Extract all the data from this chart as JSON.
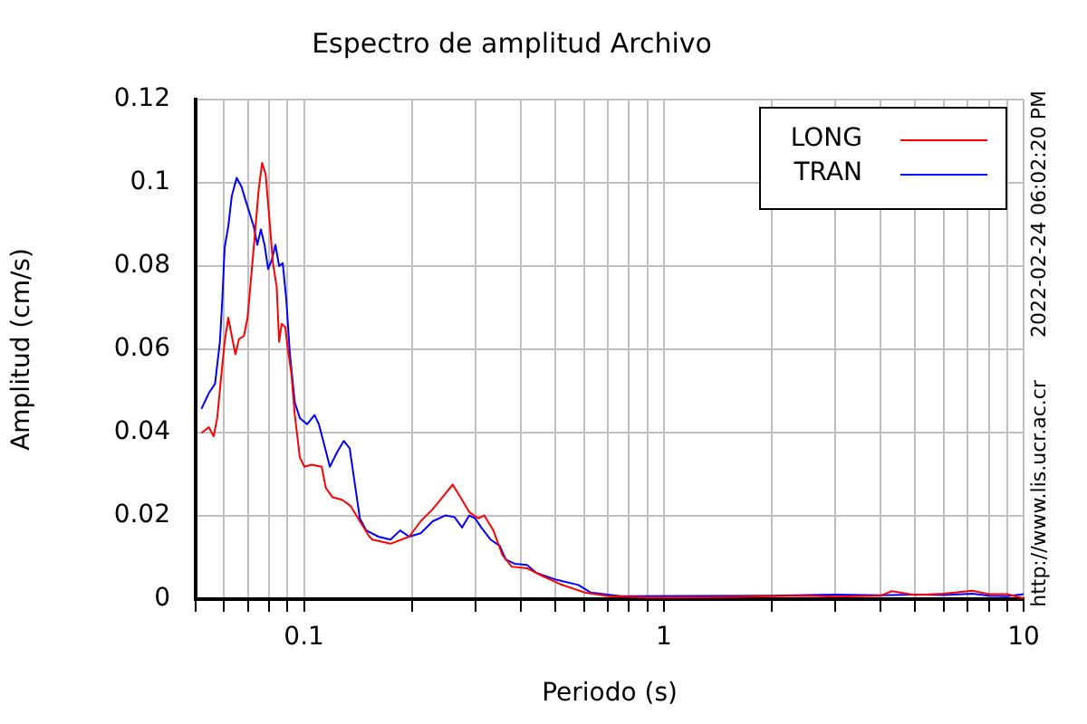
{
  "chart_data": {
    "type": "line",
    "title": "Espectro de amplitud Archivo",
    "xlabel": "Periodo (s)",
    "ylabel": "Amplitud (cm/s)",
    "log": "x",
    "grid": true,
    "legend": "top right",
    "marker": "none",
    "line_style": "solid",
    "xlim": [
      0.05,
      10
    ],
    "xticks": [
      {
        "value": 0.05,
        "label": null
      },
      {
        "value": 0.06,
        "label": null
      },
      {
        "value": 0.07,
        "label": null
      },
      {
        "value": 0.08,
        "label": null
      },
      {
        "value": 0.09,
        "label": null
      },
      0.1,
      {
        "value": 0.2,
        "label": null
      },
      {
        "value": 0.3,
        "label": null
      },
      {
        "value": 0.4,
        "label": null
      },
      {
        "value": 0.5,
        "label": null
      },
      {
        "value": 0.6,
        "label": null
      },
      {
        "value": 0.7,
        "label": null
      },
      {
        "value": 0.8,
        "label": null
      },
      {
        "value": 0.9,
        "label": null
      },
      1,
      {
        "value": 2,
        "label": null
      },
      {
        "value": 3,
        "label": null
      },
      {
        "value": 4,
        "label": null
      },
      {
        "value": 5,
        "label": null
      },
      {
        "value": 6,
        "label": null
      },
      {
        "value": 7,
        "label": null
      },
      {
        "value": 8,
        "label": null
      },
      {
        "value": 9,
        "label": null
      },
      10
    ],
    "ylim": [
      0,
      0.12
    ],
    "yticks": [
      0,
      0.02,
      0.04,
      0.06,
      0.08,
      0.1,
      0.12
    ],
    "annotations": [
      "2022-02-24 06:02:20 PM",
      "http://www.lis.ucr.ac.cr"
    ],
    "series": [
      {
        "name": "LONG",
        "color": "#ff0000",
        "x": [
          0.0519,
          0.0544,
          0.0561,
          0.0574,
          0.0588,
          0.0602,
          0.0616,
          0.063,
          0.0645,
          0.066,
          0.0681,
          0.0697,
          0.0714,
          0.0731,
          0.0748,
          0.0765,
          0.0783,
          0.0802,
          0.082,
          0.084,
          0.0853,
          0.0867,
          0.0887,
          0.0901,
          0.0922,
          0.0943,
          0.0974,
          0.1003,
          0.105,
          0.112,
          0.115,
          0.12,
          0.128,
          0.135,
          0.143,
          0.152,
          0.155,
          0.174,
          0.196,
          0.211,
          0.228,
          0.247,
          0.259,
          0.272,
          0.288,
          0.305,
          0.317,
          0.336,
          0.356,
          0.378,
          0.417,
          0.459,
          0.515,
          0.602,
          0.703,
          0.922,
          1.5,
          2,
          2.5,
          3,
          4,
          4.3,
          5,
          6,
          7.2,
          8,
          9,
          10
        ],
        "values": [
          0.0399,
          0.0413,
          0.0391,
          0.0435,
          0.053,
          0.0618,
          0.0676,
          0.0632,
          0.0588,
          0.0625,
          0.0632,
          0.0676,
          0.0778,
          0.088,
          0.0982,
          0.1048,
          0.1019,
          0.091,
          0.0807,
          0.0749,
          0.0618,
          0.0661,
          0.0654,
          0.0603,
          0.0544,
          0.0442,
          0.034,
          0.0318,
          0.0323,
          0.0318,
          0.0267,
          0.0245,
          0.0238,
          0.0223,
          0.0187,
          0.015,
          0.0143,
          0.0133,
          0.015,
          0.0187,
          0.0216,
          0.0253,
          0.0275,
          0.0245,
          0.0209,
          0.0194,
          0.0201,
          0.0165,
          0.0106,
          0.0078,
          0.0074,
          0.0056,
          0.0036,
          0.0016,
          0.0007,
          0.0004,
          0.0005,
          0.0007,
          0.0008,
          0.0006,
          0.0008,
          0.0019,
          0.001,
          0.0013,
          0.002,
          0.0012,
          0.0012,
          0.0002
        ]
      },
      {
        "name": "TRAN",
        "color": "#0000ff",
        "x": [
          0.0519,
          0.0544,
          0.0566,
          0.0584,
          0.0593,
          0.0602,
          0.0616,
          0.063,
          0.065,
          0.0671,
          0.0687,
          0.0708,
          0.0725,
          0.0742,
          0.0759,
          0.0777,
          0.0795,
          0.0814,
          0.0833,
          0.0853,
          0.0873,
          0.0893,
          0.0914,
          0.0943,
          0.0974,
          0.102,
          0.107,
          0.11,
          0.114,
          0.118,
          0.124,
          0.129,
          0.134,
          0.139,
          0.143,
          0.149,
          0.161,
          0.174,
          0.185,
          0.196,
          0.211,
          0.228,
          0.247,
          0.262,
          0.275,
          0.288,
          0.299,
          0.311,
          0.33,
          0.35,
          0.364,
          0.385,
          0.417,
          0.442,
          0.496,
          0.579,
          0.626,
          0.759,
          2,
          2.5,
          3,
          4,
          5,
          6,
          7.2,
          8,
          9,
          10
        ],
        "values": [
          0.0457,
          0.0495,
          0.0517,
          0.0618,
          0.072,
          0.0845,
          0.0895,
          0.0968,
          0.1012,
          0.099,
          0.096,
          0.0924,
          0.0895,
          0.0851,
          0.0888,
          0.0851,
          0.0793,
          0.0815,
          0.0851,
          0.08,
          0.0807,
          0.072,
          0.0588,
          0.0472,
          0.0435,
          0.042,
          0.0442,
          0.042,
          0.0369,
          0.0318,
          0.0355,
          0.038,
          0.0362,
          0.0267,
          0.0194,
          0.0165,
          0.015,
          0.0143,
          0.0165,
          0.015,
          0.0158,
          0.0187,
          0.0201,
          0.0197,
          0.0172,
          0.0201,
          0.0194,
          0.0172,
          0.0143,
          0.0128,
          0.0095,
          0.0085,
          0.0082,
          0.0063,
          0.0048,
          0.0034,
          0.0016,
          0.0007,
          0.0008,
          0.001,
          0.0011,
          0.0009,
          0.0011,
          0.001,
          0.0013,
          0.0008,
          0.0007,
          0.0012
        ]
      }
    ]
  }
}
